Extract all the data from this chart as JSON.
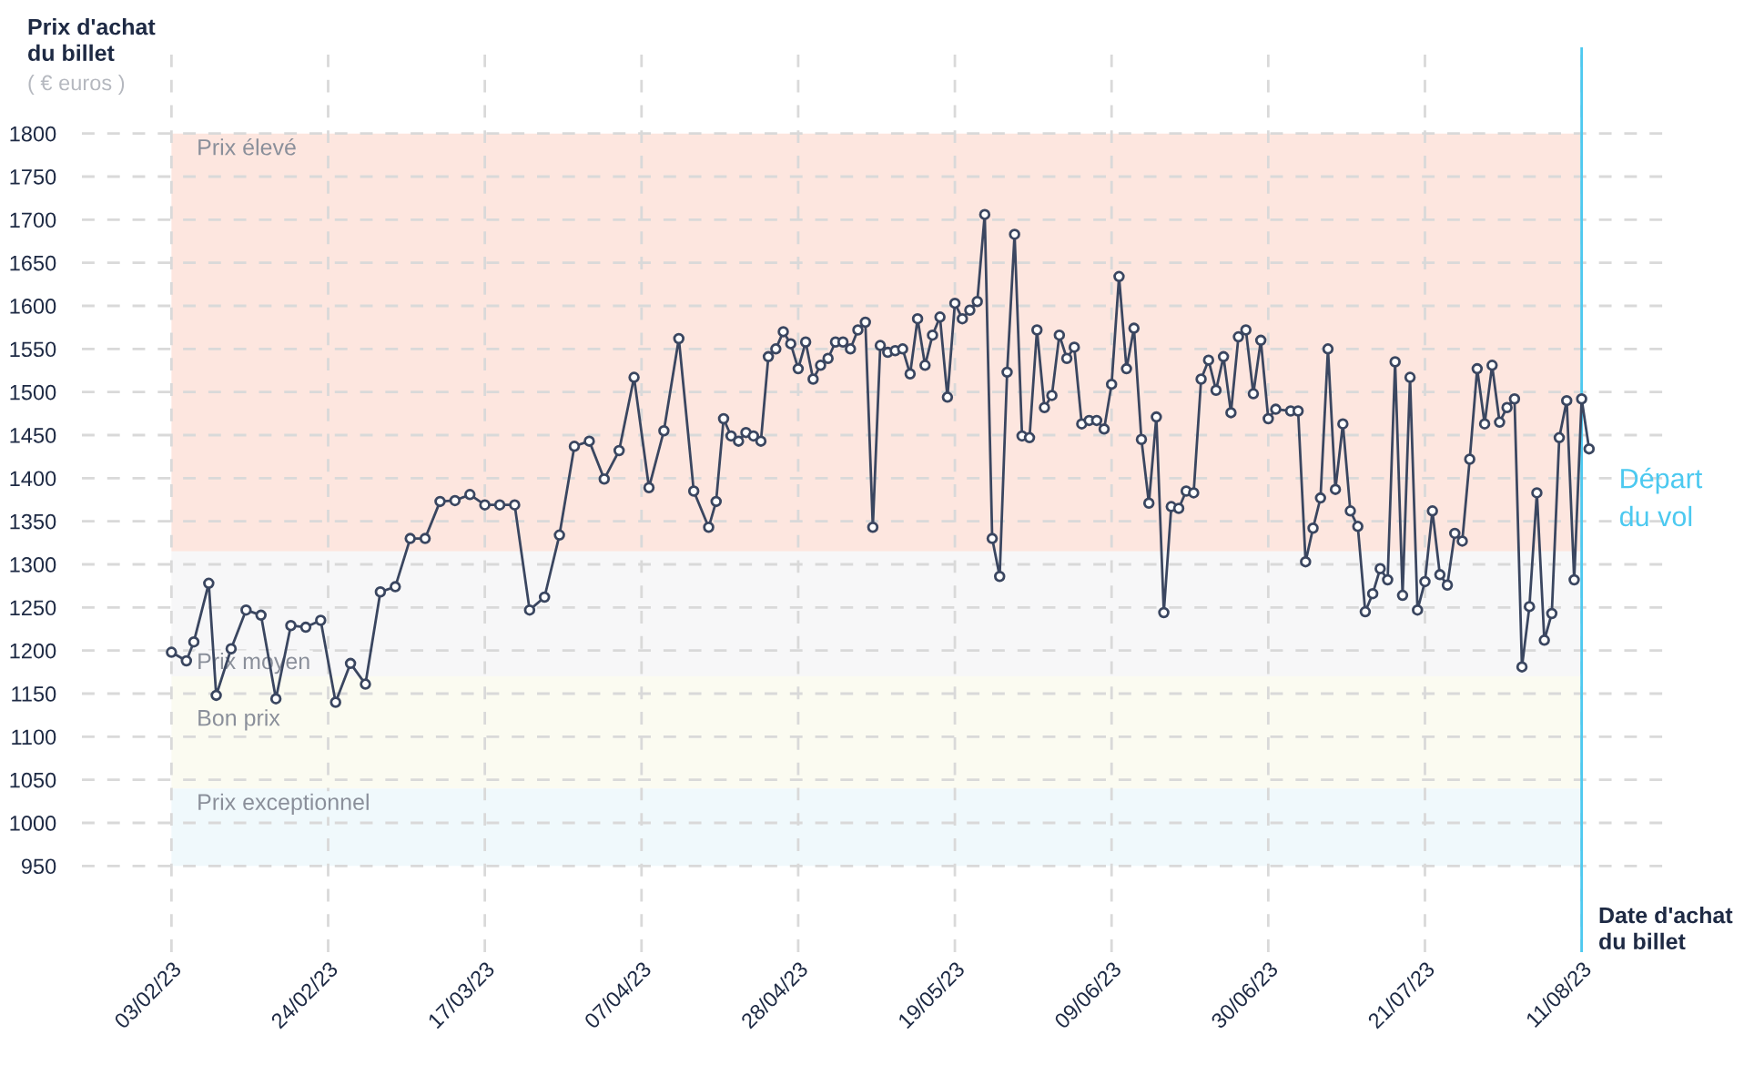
{
  "chart_data": {
    "type": "line",
    "ylabel": "Prix d'achat\ndu billet",
    "subtitle": "( € euros )",
    "xlabel": "Date d'achat\ndu billet",
    "x": [
      "2023-02-03",
      "2023-02-05",
      "2023-02-06",
      "2023-02-08",
      "2023-02-09",
      "2023-02-11",
      "2023-02-13",
      "2023-02-15",
      "2023-02-17",
      "2023-02-19",
      "2023-02-21",
      "2023-02-23",
      "2023-02-25",
      "2023-02-27",
      "2023-03-01",
      "2023-03-03",
      "2023-03-05",
      "2023-03-07",
      "2023-03-09",
      "2023-03-11",
      "2023-03-13",
      "2023-03-15",
      "2023-03-17",
      "2023-03-19",
      "2023-03-21",
      "2023-03-23",
      "2023-03-25",
      "2023-03-27",
      "2023-03-29",
      "2023-03-31",
      "2023-04-02",
      "2023-04-04",
      "2023-04-06",
      "2023-04-08",
      "2023-04-10",
      "2023-04-12",
      "2023-04-14",
      "2023-04-16",
      "2023-04-17",
      "2023-04-18",
      "2023-04-19",
      "2023-04-20",
      "2023-04-21",
      "2023-04-22",
      "2023-04-23",
      "2023-04-24",
      "2023-04-25",
      "2023-04-26",
      "2023-04-27",
      "2023-04-28",
      "2023-04-29",
      "2023-04-30",
      "2023-05-01",
      "2023-05-02",
      "2023-05-03",
      "2023-05-04",
      "2023-05-05",
      "2023-05-06",
      "2023-05-07",
      "2023-05-08",
      "2023-05-09",
      "2023-05-10",
      "2023-05-11",
      "2023-05-12",
      "2023-05-13",
      "2023-05-14",
      "2023-05-15",
      "2023-05-16",
      "2023-05-17",
      "2023-05-18",
      "2023-05-19",
      "2023-05-20",
      "2023-05-21",
      "2023-05-22",
      "2023-05-23",
      "2023-05-24",
      "2023-05-25",
      "2023-05-26",
      "2023-05-27",
      "2023-05-28",
      "2023-05-29",
      "2023-05-30",
      "2023-05-31",
      "2023-06-01",
      "2023-06-02",
      "2023-06-03",
      "2023-06-04",
      "2023-06-05",
      "2023-06-06",
      "2023-06-07",
      "2023-06-08",
      "2023-06-09",
      "2023-06-10",
      "2023-06-11",
      "2023-06-12",
      "2023-06-13",
      "2023-06-14",
      "2023-06-15",
      "2023-06-16",
      "2023-06-17",
      "2023-06-18",
      "2023-06-19",
      "2023-06-20",
      "2023-06-21",
      "2023-06-22",
      "2023-06-23",
      "2023-06-24",
      "2023-06-25",
      "2023-06-26",
      "2023-06-27",
      "2023-06-28",
      "2023-06-29",
      "2023-06-30",
      "2023-07-01",
      "2023-07-03",
      "2023-07-04",
      "2023-07-05",
      "2023-07-06",
      "2023-07-07",
      "2023-07-08",
      "2023-07-09",
      "2023-07-10",
      "2023-07-11",
      "2023-07-12",
      "2023-07-13",
      "2023-07-14",
      "2023-07-15",
      "2023-07-16",
      "2023-07-17",
      "2023-07-18",
      "2023-07-19",
      "2023-07-20",
      "2023-07-21",
      "2023-07-22",
      "2023-07-23",
      "2023-07-24",
      "2023-07-25",
      "2023-07-26",
      "2023-07-27",
      "2023-07-28",
      "2023-07-29",
      "2023-07-30",
      "2023-07-31",
      "2023-08-01",
      "2023-08-02",
      "2023-08-03",
      "2023-08-04",
      "2023-08-05",
      "2023-08-06",
      "2023-08-07",
      "2023-08-08",
      "2023-08-09",
      "2023-08-10",
      "2023-08-11",
      "2023-08-12"
    ],
    "series": [
      {
        "color": "#3a4660",
        "values": [
          1198,
          1188,
          1210,
          1278,
          1148,
          1202,
          1247,
          1241,
          1144,
          1229,
          1227,
          1235,
          1140,
          1185,
          1161,
          1268,
          1274,
          1330,
          1330,
          1373,
          1374,
          1381,
          1369,
          1369,
          1369,
          1247,
          1262,
          1334,
          1437,
          1443,
          1399,
          1432,
          1517,
          1389,
          1455,
          1562,
          1385,
          1343,
          1373,
          1469,
          1449,
          1443,
          1453,
          1449,
          1443,
          1541,
          1550,
          1570,
          1556,
          1527,
          1558,
          1515,
          1531,
          1539,
          1558,
          1558,
          1550,
          1572,
          1581,
          1343,
          1554,
          1546,
          1548,
          1550,
          1521,
          1585,
          1531,
          1566,
          1587,
          1494,
          1603,
          1585,
          1595,
          1605,
          1706,
          1330,
          1286,
          1523,
          1683,
          1449,
          1447,
          1572,
          1482,
          1496,
          1566,
          1539,
          1552,
          1463,
          1467,
          1467,
          1457,
          1509,
          1634,
          1527,
          1574,
          1445,
          1371,
          1471,
          1244,
          1367,
          1365,
          1385,
          1383,
          1515,
          1537,
          1502,
          1541,
          1476,
          1564,
          1572,
          1498,
          1560,
          1469,
          1480,
          1478,
          1478,
          1303,
          1342,
          1377,
          1550,
          1387,
          1463,
          1362,
          1344,
          1245,
          1266,
          1295,
          1282,
          1535,
          1264,
          1517,
          1247,
          1280,
          1362,
          1288,
          1276,
          1336,
          1327,
          1422,
          1527,
          1463,
          1531,
          1465,
          1482,
          1492,
          1181,
          1251,
          1383,
          1212,
          1243,
          1447,
          1490,
          1282,
          1492,
          1434
        ]
      }
    ],
    "marker": "circle",
    "line_style": "solid",
    "xlim": [
      "2023-01-22",
      "2023-08-23"
    ],
    "xticks": [
      {
        "value": "2023-02-03",
        "label": "03/02/23"
      },
      {
        "value": "2023-02-24",
        "label": "24/02/23"
      },
      {
        "value": "2023-03-17",
        "label": "17/03/23"
      },
      {
        "value": "2023-04-07",
        "label": "07/04/23"
      },
      {
        "value": "2023-04-28",
        "label": "28/04/23"
      },
      {
        "value": "2023-05-19",
        "label": "19/05/23"
      },
      {
        "value": "2023-06-09",
        "label": "09/06/23"
      },
      {
        "value": "2023-06-30",
        "label": "30/06/23"
      },
      {
        "value": "2023-07-21",
        "label": "21/07/23"
      },
      {
        "value": "2023-08-11",
        "label": "11/08/23"
      }
    ],
    "ylim": [
      850,
      1900
    ],
    "yticks": [
      950,
      1000,
      1050,
      1100,
      1150,
      1200,
      1250,
      1300,
      1350,
      1400,
      1450,
      1500,
      1550,
      1600,
      1650,
      1700,
      1750,
      1800
    ],
    "grid": true,
    "bands": [
      {
        "axis": "y",
        "from": 1315,
        "to": 1800,
        "label": "Prix élevé",
        "color": "#fde6df"
      },
      {
        "axis": "y",
        "from": 1170,
        "to": 1315,
        "label": "Prix moyen",
        "color": "#f7f7f8"
      },
      {
        "axis": "y",
        "from": 1040,
        "to": 1170,
        "label": "Bon prix",
        "color": "#fbfbf1"
      },
      {
        "axis": "y",
        "from": 950,
        "to": 1040,
        "label": "Prix exceptionnel",
        "color": "#f0f9fc"
      }
    ],
    "ref_lines": [
      {
        "axis": "x",
        "value": "2023-08-11",
        "label": "Départ\ndu vol",
        "color": "#4cc9f0",
        "line_style": "solid"
      }
    ]
  }
}
